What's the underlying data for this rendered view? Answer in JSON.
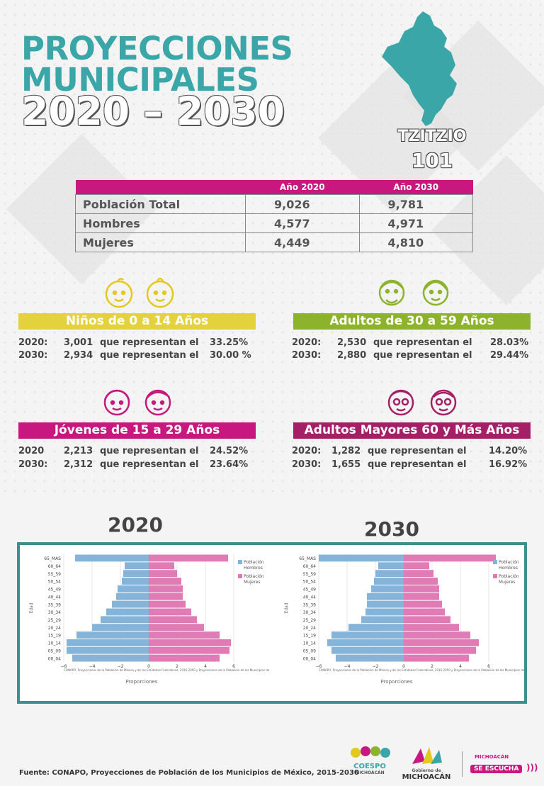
{
  "header": {
    "title_line1": "PROYECCIONES",
    "title_line2": "MUNICIPALES",
    "title_years": "2020 – 2030"
  },
  "municipio": {
    "name": "TZITZIO",
    "code": "101",
    "map_color": "#3aa6a8"
  },
  "table": {
    "col1": "Año 2020",
    "col2": "Año 2030",
    "rows": [
      {
        "label": "Población Total",
        "v2020": "9,026",
        "v2030": "9,781"
      },
      {
        "label": "Hombres",
        "v2020": "4,577",
        "v2030": "4,971"
      },
      {
        "label": "Mujeres",
        "v2020": "4,449",
        "v2030": "4,810"
      }
    ]
  },
  "groups": [
    {
      "title": "Niños de 0 a 14 Años",
      "color": "#e3d23d",
      "rows": [
        {
          "year": "2020:",
          "count": "3,001",
          "text": "que representan el",
          "pct": "33.25%"
        },
        {
          "year": "2030:",
          "count": "2,934",
          "text": "que representan el",
          "pct": "30.00 %"
        }
      ]
    },
    {
      "title": "Adultos de 30 a 59 Años",
      "color": "#8db32c",
      "rows": [
        {
          "year": "2020:",
          "count": "2,530",
          "text": "que representan el",
          "pct": "28.03%"
        },
        {
          "year": "2030:",
          "count": "2,880",
          "text": "que representan el",
          "pct": "29.44%"
        }
      ]
    },
    {
      "title": "Jóvenes de 15 a 29 Años",
      "color": "#c8187f",
      "rows": [
        {
          "year": "2020",
          "count": "2,213",
          "text": "que representan el",
          "pct": "24.52%"
        },
        {
          "year": "2030:",
          "count": "2,312",
          "text": "que representan el",
          "pct": "23.64%"
        }
      ]
    },
    {
      "title": "Adultos Mayores  60 y Más Años",
      "color": "#a51f66",
      "rows": [
        {
          "year": "2020:",
          "count": "1,282",
          "text": "que representan el",
          "pct": "14.20%"
        },
        {
          "year": "2030:",
          "count": "1,655",
          "text": "que representan el",
          "pct": "16.92%"
        }
      ]
    }
  ],
  "chart_data": [
    {
      "type": "bar",
      "year_title": "2020",
      "orientation": "horizontal",
      "ylabel": "Edad",
      "xlabel": "Proporciones",
      "xlim": [
        -6,
        6
      ],
      "x_ticks": [
        "−6",
        "−4",
        "−2",
        "0",
        "2",
        "4",
        "6"
      ],
      "categories": [
        "65_MAS",
        "60_64",
        "55_59",
        "50_54",
        "45_49",
        "40_44",
        "35_39",
        "30_34",
        "25_29",
        "20_24",
        "15_19",
        "10_14",
        "05_09",
        "00_04"
      ],
      "series": [
        {
          "name": "Población Hombres",
          "color": "#86b4d9",
          "values": [
            -5.2,
            -1.7,
            -1.8,
            -1.9,
            -2.2,
            -2.3,
            -2.6,
            -3.0,
            -3.4,
            -4.0,
            -5.1,
            -5.8,
            -5.8,
            -5.4
          ]
        },
        {
          "name": "Población Mujeres",
          "color": "#e07bb5",
          "values": [
            5.6,
            1.8,
            2.0,
            2.3,
            2.4,
            2.4,
            2.6,
            3.0,
            3.4,
            3.9,
            5.0,
            5.8,
            5.7,
            5.0
          ]
        }
      ],
      "legend_title": "Población",
      "legend_items": [
        "Hombres",
        "Mujeres"
      ],
      "note": "CONAPO, Proyecciones de la Población de México y de las Entidades Federativas, 2016-2050 y Proyecciones de la Población de los Municipios de México,"
    },
    {
      "type": "bar",
      "year_title": "2030",
      "orientation": "horizontal",
      "ylabel": "Edad",
      "xlabel": "Proporciones",
      "xlim": [
        -6,
        6
      ],
      "x_ticks": [
        "−6",
        "−4",
        "−2",
        "0",
        "2",
        "4",
        "6"
      ],
      "categories": [
        "65_MAS",
        "60_64",
        "55_59",
        "50_54",
        "45_49",
        "40_44",
        "35_39",
        "30_34",
        "25_29",
        "20_24",
        "15_19",
        "10_14",
        "05_09",
        "00_04"
      ],
      "series": [
        {
          "name": "Población Hombres",
          "color": "#86b4d9",
          "values": [
            -6.0,
            -1.8,
            -2.0,
            -2.1,
            -2.3,
            -2.6,
            -2.6,
            -2.7,
            -3.0,
            -3.9,
            -5.1,
            -5.4,
            -5.1,
            -4.8
          ]
        },
        {
          "name": "Población Mujeres",
          "color": "#e07bb5",
          "values": [
            6.5,
            1.8,
            2.1,
            2.4,
            2.5,
            2.5,
            2.7,
            2.9,
            3.3,
            3.9,
            4.7,
            5.3,
            5.1,
            4.6
          ]
        }
      ],
      "legend_title": "Población",
      "legend_items": [
        "Hombres",
        "Mujeres"
      ],
      "note": "CONAPO, Proyecciones de la Población de México y de las Entidades Federativas, 2016-2050 y Proyecciones de la Población de los Municipios de México,"
    }
  ],
  "footer": {
    "source": "Fuente: CONAPO, Proyecciones de Población de los Municipios de México, 2015-2030",
    "logo1_line1": "COESPO",
    "logo1_line2": "MICHOACÁN",
    "logo2_line1": "Gobierno de",
    "logo2_line2": "MICHOACÁN",
    "logo3_line1": "MICHOACÁN",
    "logo3_line2": "SE ESCUCHA"
  }
}
